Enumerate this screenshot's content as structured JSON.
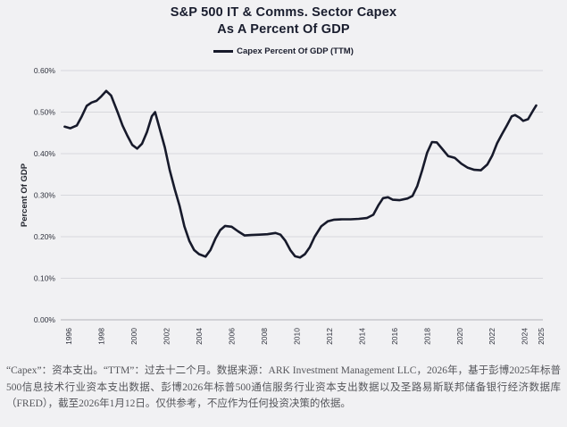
{
  "title": {
    "line1": "S&P 500 IT & Comms. Sector Capex",
    "line2": "As A Percent Of GDP"
  },
  "legend": {
    "label": "Capex Percent Of GDP (TTM)"
  },
  "colors": {
    "background": "#f1f1f3",
    "line": "#171a2b",
    "grid": "#d7d8dc",
    "axis_line": "#bfc0c5",
    "title_text": "#191d2e",
    "tick_text": "#2e313c",
    "ylabel_text": "#23262f",
    "footnote_text": "#55565b"
  },
  "chart_data": {
    "type": "line",
    "title": "S&P 500 IT & Comms. Sector Capex As A Percent Of GDP",
    "xlabel": "",
    "ylabel": "Percent Of GDP",
    "ylim": [
      0.0,
      0.6
    ],
    "xlim": [
      1995.5,
      2025.6
    ],
    "grid": "horizontal-only",
    "legend_position": "top-center",
    "y_ticks": [
      {
        "value": 0.0,
        "label": "0.00%"
      },
      {
        "value": 0.1,
        "label": "0.10%"
      },
      {
        "value": 0.2,
        "label": "0.20%"
      },
      {
        "value": 0.3,
        "label": "0.30%"
      },
      {
        "value": 0.4,
        "label": "0.40%"
      },
      {
        "value": 0.5,
        "label": "0.50%"
      },
      {
        "value": 0.6,
        "label": "0.60%"
      }
    ],
    "x_ticks": [
      {
        "value": 1996,
        "label": "1996"
      },
      {
        "value": 1998,
        "label": "1998"
      },
      {
        "value": 2000,
        "label": "2000"
      },
      {
        "value": 2002,
        "label": "2002"
      },
      {
        "value": 2004,
        "label": "2004"
      },
      {
        "value": 2006,
        "label": "2006"
      },
      {
        "value": 2008,
        "label": "2008"
      },
      {
        "value": 2010,
        "label": "2010"
      },
      {
        "value": 2012,
        "label": "2012"
      },
      {
        "value": 2014,
        "label": "2014"
      },
      {
        "value": 2016,
        "label": "2016"
      },
      {
        "value": 2018,
        "label": "2018"
      },
      {
        "value": 2020,
        "label": "2020"
      },
      {
        "value": 2022,
        "label": "2022"
      },
      {
        "value": 2024,
        "label": "2024"
      },
      {
        "value": 2025,
        "label": "2025"
      }
    ],
    "series": [
      {
        "name": "Capex Percent Of GDP (TTM)",
        "unit": "% of GDP",
        "points": [
          [
            1995.75,
            0.465
          ],
          [
            1996.1,
            0.461
          ],
          [
            1996.5,
            0.468
          ],
          [
            1996.8,
            0.49
          ],
          [
            1997.1,
            0.515
          ],
          [
            1997.4,
            0.523
          ],
          [
            1997.7,
            0.527
          ],
          [
            1998.0,
            0.538
          ],
          [
            1998.3,
            0.551
          ],
          [
            1998.6,
            0.54
          ],
          [
            1999.0,
            0.5
          ],
          [
            1999.3,
            0.468
          ],
          [
            1999.6,
            0.443
          ],
          [
            1999.9,
            0.421
          ],
          [
            2000.2,
            0.412
          ],
          [
            2000.5,
            0.424
          ],
          [
            2000.8,
            0.452
          ],
          [
            2001.1,
            0.49
          ],
          [
            2001.3,
            0.5
          ],
          [
            2001.6,
            0.458
          ],
          [
            2001.9,
            0.415
          ],
          [
            2002.2,
            0.36
          ],
          [
            2002.5,
            0.315
          ],
          [
            2002.8,
            0.275
          ],
          [
            2003.1,
            0.225
          ],
          [
            2003.4,
            0.19
          ],
          [
            2003.7,
            0.168
          ],
          [
            2004.0,
            0.158
          ],
          [
            2004.4,
            0.152
          ],
          [
            2004.7,
            0.168
          ],
          [
            2005.0,
            0.195
          ],
          [
            2005.3,
            0.216
          ],
          [
            2005.6,
            0.226
          ],
          [
            2006.0,
            0.224
          ],
          [
            2006.4,
            0.213
          ],
          [
            2006.8,
            0.203
          ],
          [
            2007.2,
            0.204
          ],
          [
            2007.7,
            0.205
          ],
          [
            2008.2,
            0.206
          ],
          [
            2008.7,
            0.209
          ],
          [
            2009.0,
            0.205
          ],
          [
            2009.3,
            0.19
          ],
          [
            2009.6,
            0.168
          ],
          [
            2009.9,
            0.153
          ],
          [
            2010.2,
            0.15
          ],
          [
            2010.5,
            0.158
          ],
          [
            2010.8,
            0.175
          ],
          [
            2011.1,
            0.2
          ],
          [
            2011.5,
            0.225
          ],
          [
            2011.9,
            0.237
          ],
          [
            2012.3,
            0.241
          ],
          [
            2012.8,
            0.242
          ],
          [
            2013.3,
            0.242
          ],
          [
            2013.8,
            0.243
          ],
          [
            2014.3,
            0.245
          ],
          [
            2014.7,
            0.253
          ],
          [
            2015.0,
            0.275
          ],
          [
            2015.3,
            0.293
          ],
          [
            2015.6,
            0.295
          ],
          [
            2015.9,
            0.289
          ],
          [
            2016.3,
            0.288
          ],
          [
            2016.8,
            0.292
          ],
          [
            2017.1,
            0.298
          ],
          [
            2017.4,
            0.322
          ],
          [
            2017.7,
            0.36
          ],
          [
            2018.0,
            0.402
          ],
          [
            2018.3,
            0.428
          ],
          [
            2018.6,
            0.427
          ],
          [
            2018.9,
            0.413
          ],
          [
            2019.3,
            0.394
          ],
          [
            2019.7,
            0.39
          ],
          [
            2020.1,
            0.376
          ],
          [
            2020.5,
            0.366
          ],
          [
            2020.9,
            0.361
          ],
          [
            2021.3,
            0.36
          ],
          [
            2021.7,
            0.374
          ],
          [
            2022.0,
            0.395
          ],
          [
            2022.3,
            0.425
          ],
          [
            2022.6,
            0.447
          ],
          [
            2022.9,
            0.468
          ],
          [
            2023.2,
            0.49
          ],
          [
            2023.4,
            0.493
          ],
          [
            2023.7,
            0.486
          ],
          [
            2023.9,
            0.479
          ],
          [
            2024.2,
            0.483
          ],
          [
            2024.5,
            0.503
          ],
          [
            2024.7,
            0.516
          ]
        ]
      }
    ]
  },
  "footnote": {
    "text": "“Capex”：资本支出。“TTM”：过去十二个月。数据来源：ARK Investment Management LLC，2026年，基于彭博2025年标普500信息技术行业资本支出数据、彭博2026年标普500通信服务行业资本支出数据以及圣路易斯联邦储备银行经济数据库（FRED），截至2026年1月12日。仅供参考，不应作为任何投资决策的依据。"
  }
}
